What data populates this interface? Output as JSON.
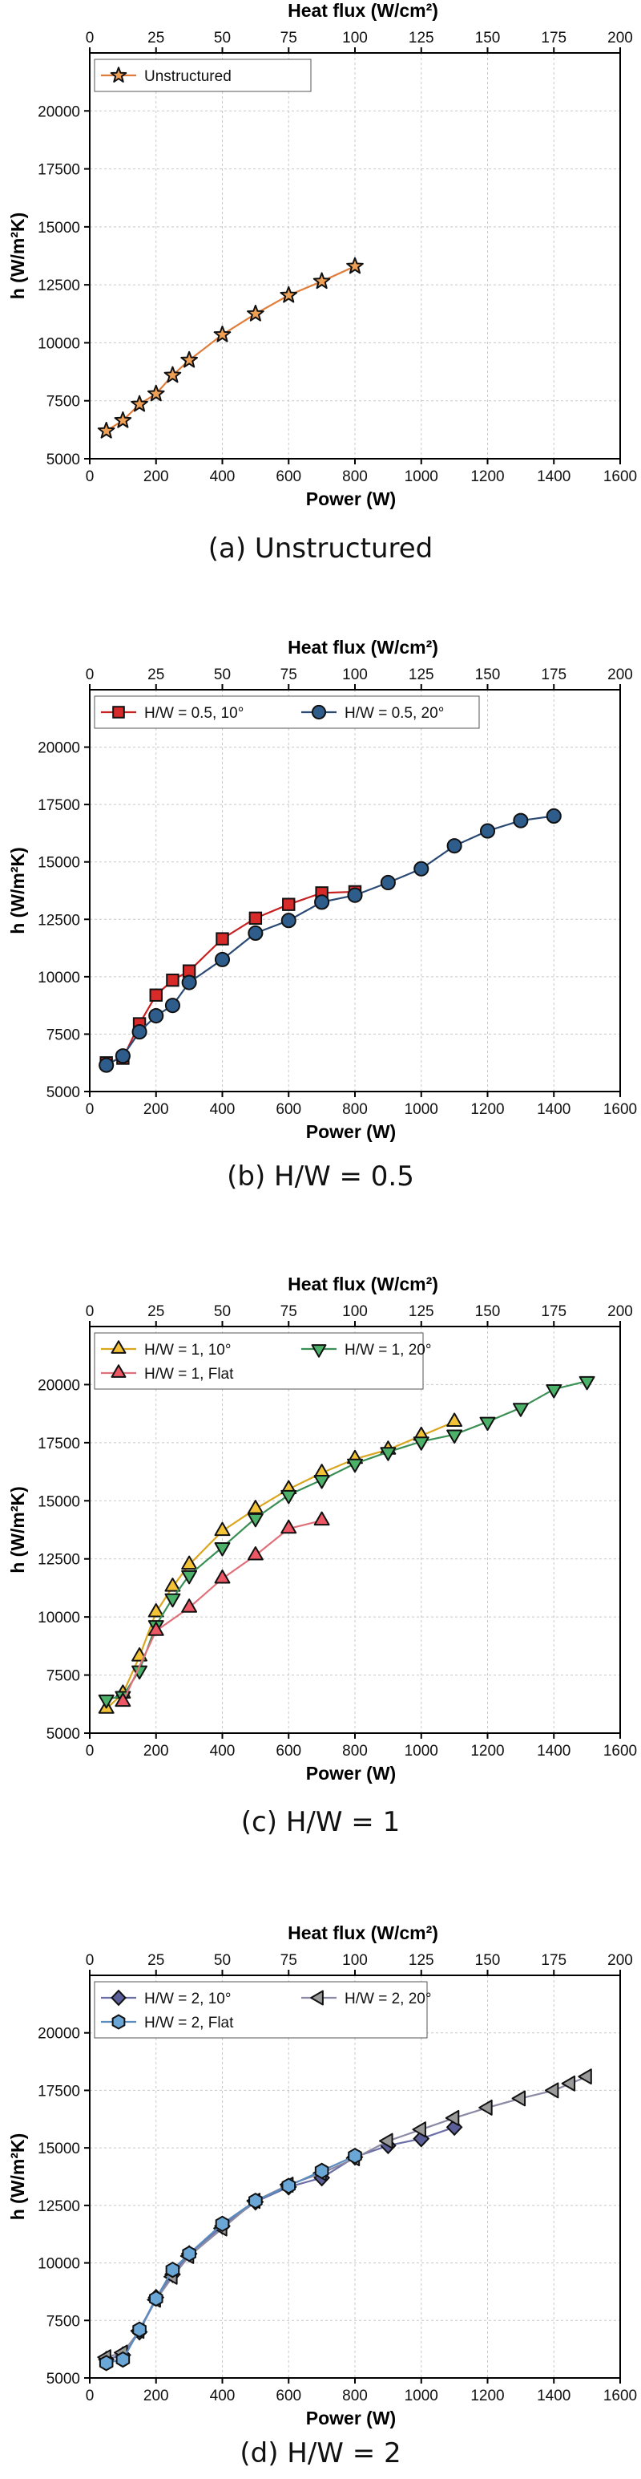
{
  "chart_data": [
    {
      "type": "line",
      "caption": "(a) Unstructured",
      "title": "",
      "xlabel": "Power (W)",
      "x2label": "Heat flux (W/cm²)",
      "ylabel": "h (W/m²K)",
      "xlim": [
        0,
        1600
      ],
      "x2lim": [
        0,
        200
      ],
      "ylim": [
        5000,
        22500
      ],
      "xticks": [
        "0",
        "200",
        "400",
        "600",
        "800",
        "1000",
        "1200",
        "1400",
        "1600"
      ],
      "x2ticks": [
        "0",
        "25",
        "50",
        "75",
        "100",
        "125",
        "150",
        "175",
        "200"
      ],
      "yticks": [
        "5000",
        "7500",
        "10000",
        "12500",
        "15000",
        "17500",
        "20000"
      ],
      "grid": true,
      "legend_position": "top-left",
      "series": [
        {
          "name": "Unstructured",
          "marker": "star",
          "fill": "#f0a055",
          "line": "#e07d3a",
          "x": [
            50,
            100,
            150,
            200,
            250,
            300,
            400,
            500,
            600,
            700,
            800
          ],
          "y": [
            6200,
            6650,
            7350,
            7800,
            8600,
            9250,
            10350,
            11250,
            12050,
            12650,
            13300
          ]
        }
      ]
    },
    {
      "type": "line",
      "caption": "(b) H/W = 0.5",
      "title": "",
      "xlabel": "Power (W)",
      "x2label": "Heat flux (W/cm²)",
      "ylabel": "h (W/m²K)",
      "xlim": [
        0,
        1600
      ],
      "x2lim": [
        0,
        200
      ],
      "ylim": [
        5000,
        22500
      ],
      "xticks": [
        "0",
        "200",
        "400",
        "600",
        "800",
        "1000",
        "1200",
        "1400",
        "1600"
      ],
      "x2ticks": [
        "0",
        "25",
        "50",
        "75",
        "100",
        "125",
        "150",
        "175",
        "200"
      ],
      "yticks": [
        "5000",
        "7500",
        "10000",
        "12500",
        "15000",
        "17500",
        "20000"
      ],
      "grid": true,
      "legend_position": "top-left",
      "series": [
        {
          "name": "H/W = 0.5, 10°",
          "marker": "square",
          "fill": "#d92a2a",
          "line": "#c62020",
          "x": [
            50,
            100,
            150,
            200,
            250,
            300,
            400,
            500,
            600,
            700,
            800
          ],
          "y": [
            6250,
            6450,
            7950,
            9200,
            9850,
            10250,
            11650,
            12550,
            13150,
            13650,
            13700
          ]
        },
        {
          "name": "H/W = 0.5, 20°",
          "marker": "circle",
          "fill": "#2e5d8c",
          "line": "#2a4a74",
          "x": [
            50,
            100,
            150,
            200,
            250,
            300,
            400,
            500,
            600,
            700,
            800,
            900,
            1000,
            1100,
            1200,
            1300,
            1400
          ],
          "y": [
            6150,
            6550,
            7600,
            8300,
            8750,
            9750,
            10750,
            11900,
            12450,
            13250,
            13550,
            14100,
            14700,
            15700,
            16350,
            16800,
            17000
          ]
        }
      ]
    },
    {
      "type": "line",
      "caption": "(c) H/W = 1",
      "title": "",
      "xlabel": "Power (W)",
      "x2label": "Heat flux (W/cm²)",
      "ylabel": "h (W/m²K)",
      "xlim": [
        0,
        1600
      ],
      "x2lim": [
        0,
        200
      ],
      "ylim": [
        5000,
        22500
      ],
      "xticks": [
        "0",
        "200",
        "400",
        "600",
        "800",
        "1000",
        "1200",
        "1400",
        "1600"
      ],
      "x2ticks": [
        "0",
        "25",
        "50",
        "75",
        "100",
        "125",
        "150",
        "175",
        "200"
      ],
      "yticks": [
        "5000",
        "7500",
        "10000",
        "12500",
        "15000",
        "17500",
        "20000"
      ],
      "grid": true,
      "legend_position": "top-left",
      "series": [
        {
          "name": "H/W = 1, 10°",
          "marker": "triangle-up",
          "fill": "#f3c237",
          "line": "#d9a61d",
          "x": [
            50,
            100,
            150,
            200,
            250,
            300,
            400,
            500,
            600,
            700,
            800,
            900,
            1000,
            1100
          ],
          "y": [
            6050,
            6700,
            8300,
            10200,
            11300,
            12250,
            13700,
            14650,
            15500,
            16200,
            16800,
            17200,
            17800,
            18400
          ]
        },
        {
          "name": "H/W = 1, 20°",
          "marker": "triangle-down",
          "fill": "#4cb26a",
          "line": "#3a8f54",
          "x": [
            50,
            100,
            150,
            200,
            250,
            300,
            400,
            500,
            600,
            700,
            800,
            900,
            1000,
            1100,
            1200,
            1300,
            1400,
            1500
          ],
          "y": [
            6450,
            6600,
            7700,
            9650,
            10800,
            11800,
            13000,
            14250,
            15250,
            15900,
            16600,
            17100,
            17550,
            17850,
            18400,
            19000,
            19800,
            20150
          ]
        },
        {
          "name": "H/W = 1, Flat",
          "marker": "triangle-right",
          "fill": "#ee5866",
          "line": "#e0707a",
          "x": [
            100,
            200,
            300,
            400,
            500,
            600,
            700
          ],
          "y": [
            6350,
            9400,
            10400,
            11650,
            12650,
            13800,
            14150
          ]
        }
      ]
    },
    {
      "type": "line",
      "caption": "(d) H/W = 2",
      "title": "",
      "xlabel": "Power (W)",
      "x2label": "Heat flux (W/cm²)",
      "ylabel": "h (W/m²K)",
      "xlim": [
        0,
        1600
      ],
      "x2lim": [
        0,
        200
      ],
      "ylim": [
        5000,
        22500
      ],
      "xticks": [
        "0",
        "200",
        "400",
        "600",
        "800",
        "1000",
        "1200",
        "1400",
        "1600"
      ],
      "x2ticks": [
        "0",
        "25",
        "50",
        "75",
        "100",
        "125",
        "150",
        "175",
        "200"
      ],
      "yticks": [
        "5000",
        "7500",
        "10000",
        "12500",
        "15000",
        "17500",
        "20000"
      ],
      "grid": true,
      "legend_position": "top-left",
      "series": [
        {
          "name": "H/W = 2, 10°",
          "marker": "diamond",
          "fill": "#5a5f9a",
          "line": "#6c6fa6",
          "x": [
            50,
            100,
            150,
            200,
            250,
            300,
            400,
            500,
            600,
            700,
            800,
            900,
            1000,
            1100
          ],
          "y": [
            5800,
            6000,
            7000,
            8500,
            9500,
            10400,
            11600,
            12650,
            13300,
            13700,
            14600,
            15100,
            15400,
            15900
          ]
        },
        {
          "name": "H/W = 2, 20°",
          "marker": "triangle-left",
          "fill": "#9a9a9a",
          "line": "#8a8aa4",
          "x": [
            50,
            100,
            150,
            200,
            250,
            300,
            400,
            500,
            600,
            700,
            800,
            900,
            1000,
            1100,
            1200,
            1300,
            1400,
            1450,
            1500
          ],
          "y": [
            5900,
            6100,
            7050,
            8400,
            9400,
            10300,
            11500,
            12700,
            13400,
            13900,
            14550,
            15300,
            15800,
            16300,
            16750,
            17150,
            17500,
            17800,
            18100
          ]
        },
        {
          "name": "H/W = 2, Flat",
          "marker": "hexagon",
          "fill": "#6aa6d6",
          "line": "#5a8cc0",
          "x": [
            50,
            100,
            150,
            200,
            250,
            300,
            400,
            500,
            600,
            700,
            800
          ],
          "y": [
            5650,
            5800,
            7100,
            8450,
            9700,
            10400,
            11700,
            12700,
            13350,
            14000,
            14650
          ]
        }
      ]
    }
  ]
}
